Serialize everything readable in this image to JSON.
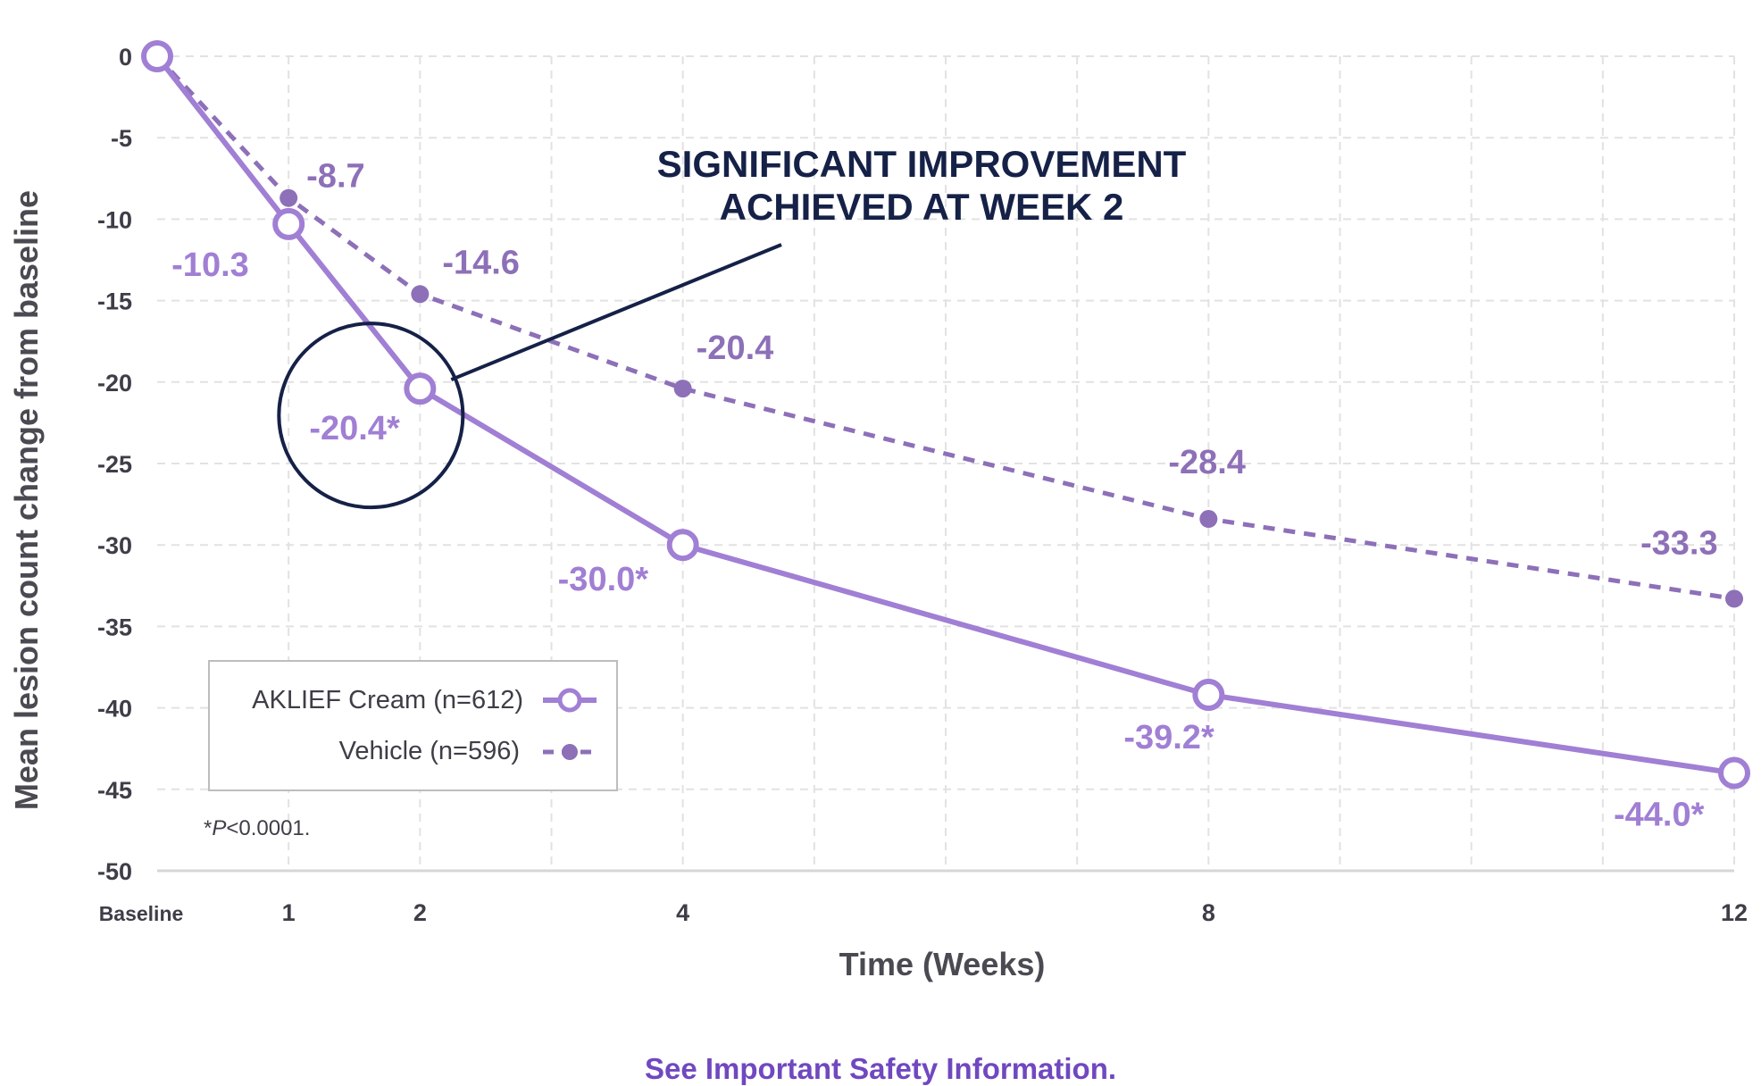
{
  "chart_data": {
    "type": "line",
    "title": "",
    "xlabel": "Time (Weeks)",
    "ylabel": "Mean lesion count change from baseline",
    "x": [
      0,
      1,
      2,
      4,
      8,
      12
    ],
    "x_tick_labels": [
      "Baseline",
      "1",
      "2",
      "4",
      "8",
      "12"
    ],
    "yticks": [
      0,
      -5,
      -10,
      -15,
      -20,
      -25,
      -30,
      -35,
      -40,
      -45,
      -50
    ],
    "ylim": [
      -50,
      0
    ],
    "xlim": [
      0,
      12
    ],
    "grid": true,
    "series": [
      {
        "name": "AKLIEF Cream (n=612)",
        "style": "solid",
        "marker": "open-circle",
        "color": "#a07fd4",
        "values": [
          0,
          -10.3,
          -20.4,
          -30.0,
          -39.2,
          -44.0
        ],
        "labels": [
          "",
          "-10.3",
          "-20.4*",
          "-30.0*",
          "-39.2*",
          "-44.0*"
        ]
      },
      {
        "name": "Vehicle (n=596)",
        "style": "dashed",
        "marker": "filled-dot",
        "color": "#8d70b8",
        "values": [
          0,
          -8.7,
          -14.6,
          -20.4,
          -28.4,
          -33.3
        ],
        "labels": [
          "",
          "-8.7",
          "-14.6",
          "-20.4",
          "-28.4",
          "-33.3"
        ]
      }
    ],
    "annotation": {
      "line1": "SIGNIFICANT IMPROVEMENT",
      "line2": "ACHIEVED AT WEEK 2",
      "target_week": 2,
      "color": "#152147"
    },
    "footnote_prefix": "*",
    "footnote_italic": "P",
    "footnote_rest": "<0.0001.",
    "legend_position": "bottom-left"
  },
  "footer": {
    "safety_link": "See Important Safety Information."
  }
}
